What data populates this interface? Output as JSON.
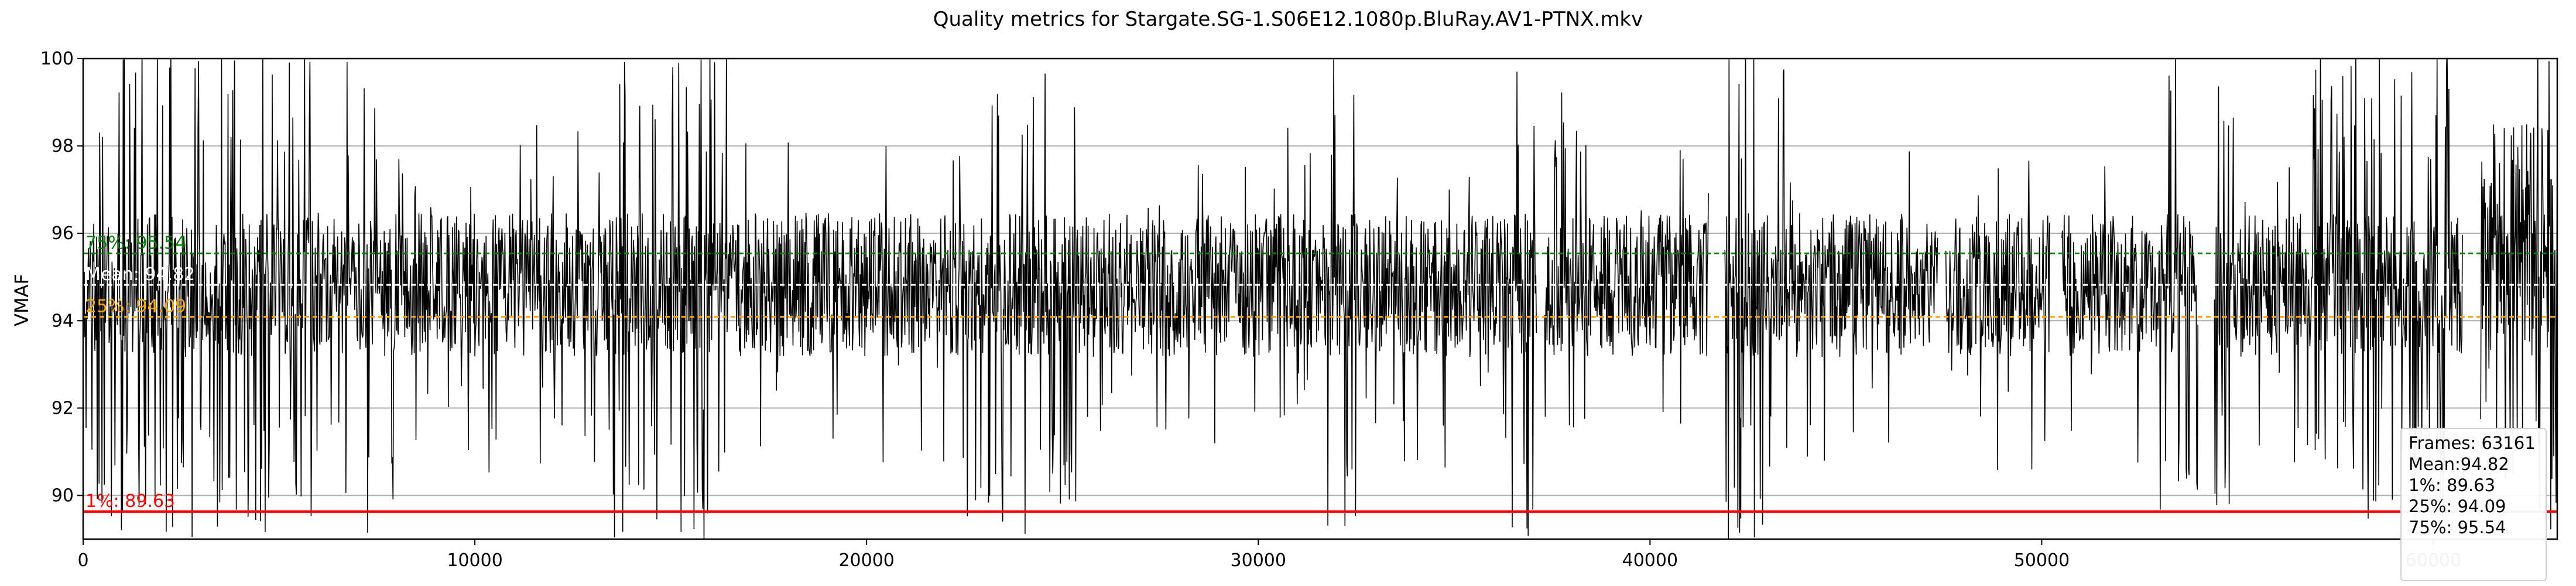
{
  "chart_data": {
    "type": "line",
    "title": "Quality metrics for Stargate.SG-1.S06E12.1080p.BluRay.AV1-PTNX.mkv",
    "xlabel": "",
    "ylabel": "VMAF",
    "xlim": [
      0,
      63161
    ],
    "ylim": [
      89,
      100
    ],
    "xticks": [
      0,
      10000,
      20000,
      30000,
      40000,
      50000,
      60000
    ],
    "xtick_labels": [
      "0",
      "10000",
      "20000",
      "30000",
      "40000",
      "50000",
      "60000"
    ],
    "yticks": [
      90,
      92,
      94,
      96,
      98,
      100
    ],
    "ytick_labels": [
      "90",
      "92",
      "94",
      "96",
      "98",
      "100"
    ],
    "grid": "horizontal",
    "series": [
      {
        "name": "",
        "color": "#000000",
        "frames": 63161,
        "mean": 94.82,
        "band_low": 93.3,
        "band_high": 96.3,
        "dense_spans": [
          [
            0,
            6000
          ],
          [
            6500,
            8000
          ],
          [
            13500,
            16500
          ],
          [
            22500,
            25500
          ],
          [
            31500,
            32500
          ],
          [
            36000,
            38000
          ],
          [
            41500,
            43500
          ],
          [
            53000,
            55000
          ],
          [
            56500,
            60500
          ],
          [
            61500,
            63161
          ]
        ],
        "gaps": [
          [
            37100,
            37300
          ],
          [
            41500,
            41900
          ],
          [
            47350,
            47550
          ],
          [
            50200,
            50500
          ],
          [
            54000,
            54400
          ],
          [
            60750,
            61200
          ]
        ],
        "late_offset_start": 61000,
        "late_offset_level": 96.9
      }
    ],
    "reference_lines": [
      {
        "key": "p75",
        "label": "75%: 95.54",
        "value": 95.54,
        "color": "#008000",
        "style": "dashed"
      },
      {
        "key": "mean",
        "label": "Mean: 94.82",
        "value": 94.82,
        "color": "#ffffff",
        "style": "dashed"
      },
      {
        "key": "p25",
        "label": "25%: 94.09",
        "value": 94.09,
        "color": "#ffa500",
        "style": "dashed"
      },
      {
        "key": "p1",
        "label": "1%: 89.63",
        "value": 89.63,
        "color": "#ff0000",
        "style": "solid"
      }
    ],
    "stats_box": {
      "lines": [
        "Frames: 63161",
        "Mean:94.82",
        "1%: 89.63",
        "25%: 94.09",
        "75%: 95.54"
      ],
      "placement": "bottom-right"
    }
  }
}
